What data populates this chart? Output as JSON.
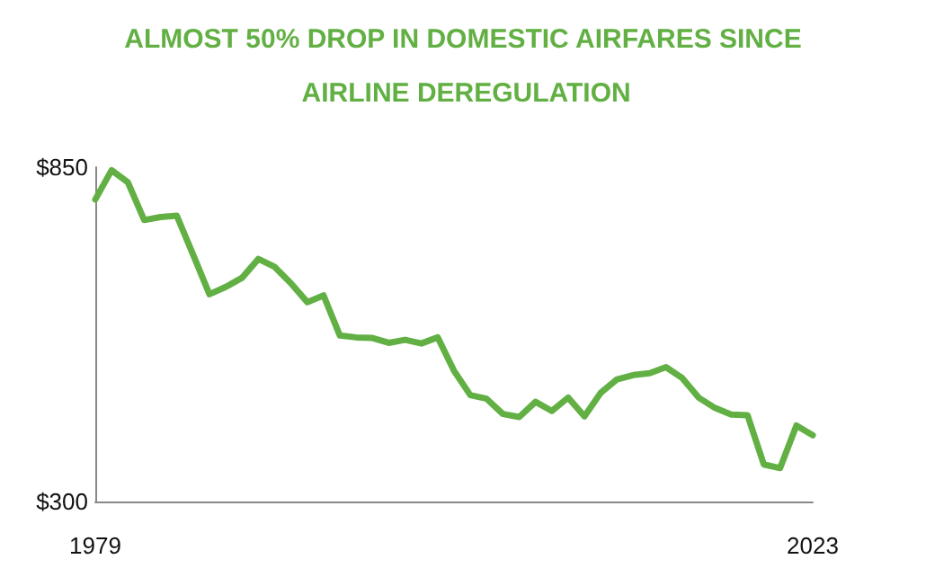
{
  "chart_data": {
    "type": "line",
    "title": "ALMOST 50% DROP IN DOMESTIC AIRFARES SINCE AIRLINE DEREGULATION",
    "x": [
      1979,
      1980,
      1981,
      1982,
      1983,
      1984,
      1985,
      1986,
      1987,
      1988,
      1989,
      1990,
      1991,
      1992,
      1993,
      1994,
      1995,
      1996,
      1997,
      1998,
      1999,
      2000,
      2001,
      2002,
      2003,
      2004,
      2005,
      2006,
      2007,
      2008,
      2009,
      2010,
      2011,
      2012,
      2013,
      2014,
      2015,
      2016,
      2017,
      2018,
      2019,
      2020,
      2021,
      2022,
      2023
    ],
    "series": [
      {
        "color": "#62b044",
        "values": [
          797,
          845,
          825,
          763,
          768,
          770,
          706,
          641,
          653,
          668,
          699,
          686,
          659,
          628,
          639,
          573,
          570,
          569,
          561,
          566,
          560,
          570,
          515,
          475,
          469,
          444,
          439,
          464,
          449,
          471,
          440,
          479,
          501,
          508,
          511,
          521,
          503,
          471,
          454,
          443,
          442,
          361,
          355,
          425,
          409
        ]
      }
    ],
    "xlim": [
      1979,
      2023
    ],
    "xticks": [
      1979,
      2023
    ],
    "ylim": [
      300,
      850
    ],
    "yticks": [
      {
        "value": 300,
        "label": "$300"
      },
      {
        "value": 850,
        "label": "$850"
      }
    ],
    "grid": false,
    "marker": "none",
    "line_style": "solid"
  }
}
